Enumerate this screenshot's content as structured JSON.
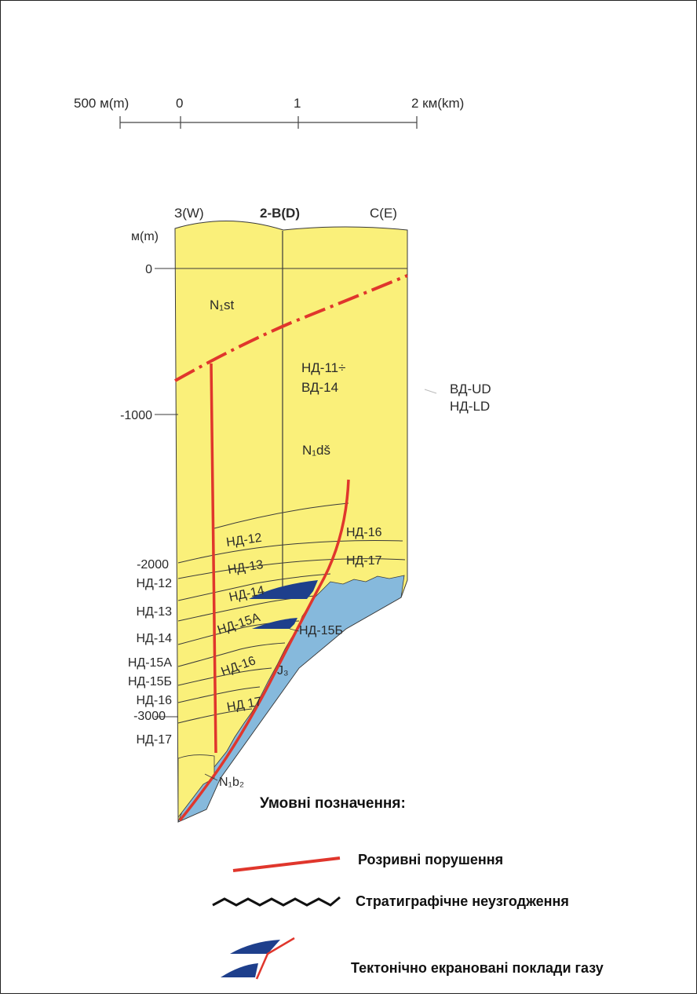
{
  "scale_bar": {
    "labels": [
      "500 м(m)",
      "0",
      "1",
      "2 км(km)"
    ]
  },
  "section": {
    "well": "2-B(D)",
    "west": "З(W)",
    "east": "С(E)",
    "depth_unit": "м(m)",
    "depth_ticks": [
      "0",
      "-1000",
      "-2000",
      "-3000"
    ],
    "formations": {
      "n1st": "N₁st",
      "n1ds": "N₁dš",
      "nd_range_1": "НД-11÷",
      "nd_range_2": "ВД-14",
      "j3": "J₃",
      "n1b2": "N₁b₂"
    },
    "ud_ld": {
      "ud": "ВД-UD",
      "ld": "НД-LD"
    },
    "left_horizons": [
      "НД-12",
      "НД-13",
      "НД-14",
      "НД-15А",
      "НД-15Б",
      "НД-16",
      "НД-17"
    ],
    "inner_horizons": {
      "h12": "НД-12",
      "h13": "НД-13",
      "h14": "НД-14",
      "h15a": "НД-15А",
      "h16": "НД-16",
      "h17": "НД 17"
    },
    "right_horizons": {
      "h16": "НД-16",
      "h17": "НД-17",
      "h15b": "НД-15Б"
    }
  },
  "legend": {
    "title": "Умовні позначення:",
    "items": [
      {
        "icon": "red-fault-line-icon",
        "label": "Розривні порушення"
      },
      {
        "icon": "wavy-unconformity-icon",
        "label": "Стратиграфічне неузгодження"
      },
      {
        "icon": "gas-deposit-icon",
        "label": "Тектонічно екрановані поклади газу"
      }
    ]
  },
  "colors": {
    "yellow": "#faf07a",
    "blue": "#86b9dc",
    "gas": "#1e3f8c",
    "fault": "#e0362c",
    "line": "#3a3a3a"
  }
}
